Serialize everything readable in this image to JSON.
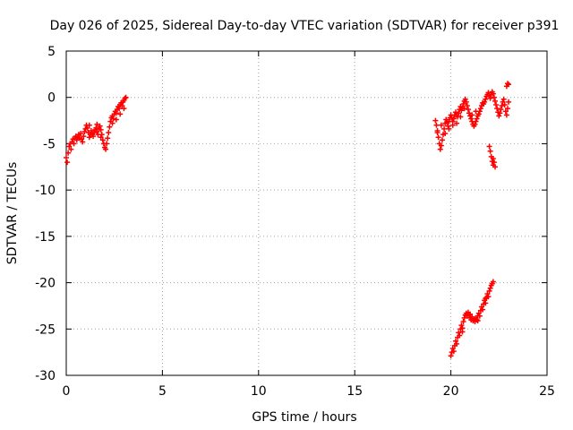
{
  "chart_data": {
    "type": "scatter",
    "title": "Day 026 of 2025, Sidereal Day-to-day VTEC variation (SDTVAR) for receiver p391",
    "xlabel": "GPS time / hours",
    "ylabel": "SDTVAR / TECUs",
    "xlim": [
      0,
      25
    ],
    "ylim": [
      -30,
      5
    ],
    "x_ticks": [
      0,
      5,
      10,
      15,
      20,
      25
    ],
    "y_ticks": [
      5,
      0,
      -5,
      -10,
      -15,
      -20,
      -25,
      -30
    ],
    "grid": true,
    "marker": "plus",
    "series_color": "#ff0000",
    "series": [
      {
        "points": [
          [
            0.0,
            -6.5
          ],
          [
            0.05,
            -7.0
          ],
          [
            0.1,
            -6.0
          ],
          [
            0.15,
            -5.3
          ],
          [
            0.2,
            -5.0
          ],
          [
            0.25,
            -5.6
          ],
          [
            0.3,
            -4.8
          ],
          [
            0.35,
            -4.5
          ],
          [
            0.4,
            -5.0
          ],
          [
            0.45,
            -4.4
          ],
          [
            0.5,
            -4.2
          ],
          [
            0.55,
            -4.6
          ],
          [
            0.6,
            -4.3
          ],
          [
            0.65,
            -4.0
          ],
          [
            0.7,
            -4.4
          ],
          [
            0.75,
            -3.9
          ],
          [
            0.8,
            -4.5
          ],
          [
            0.85,
            -4.8
          ],
          [
            0.9,
            -4.2
          ],
          [
            0.95,
            -3.7
          ],
          [
            1.0,
            -3.4
          ],
          [
            1.05,
            -3.0
          ],
          [
            1.1,
            -3.3
          ],
          [
            1.15,
            -3.8
          ],
          [
            1.2,
            -4.3
          ],
          [
            1.25,
            -4.0
          ],
          [
            1.3,
            -3.6
          ],
          [
            1.35,
            -3.9
          ],
          [
            1.4,
            -4.2
          ],
          [
            1.45,
            -3.8
          ],
          [
            1.5,
            -3.5
          ],
          [
            1.55,
            -3.3
          ],
          [
            1.6,
            -3.7
          ],
          [
            1.65,
            -4.0
          ],
          [
            1.7,
            -3.4
          ],
          [
            1.75,
            -3.1
          ],
          [
            1.8,
            -3.5
          ],
          [
            1.85,
            -4.0
          ],
          [
            1.9,
            -4.6
          ],
          [
            1.95,
            -5.0
          ],
          [
            2.0,
            -5.4
          ],
          [
            2.05,
            -5.6
          ],
          [
            2.1,
            -5.0
          ],
          [
            2.15,
            -4.4
          ],
          [
            2.2,
            -3.8
          ],
          [
            2.25,
            -3.2
          ],
          [
            2.3,
            -2.6
          ],
          [
            2.35,
            -2.2
          ],
          [
            2.4,
            -2.0
          ],
          [
            2.45,
            -2.3
          ],
          [
            2.5,
            -1.8
          ],
          [
            2.55,
            -1.5
          ],
          [
            2.6,
            -1.7
          ],
          [
            2.65,
            -1.3
          ],
          [
            2.7,
            -1.0
          ],
          [
            2.75,
            -1.2
          ],
          [
            2.8,
            -0.8
          ],
          [
            2.85,
            -0.6
          ],
          [
            2.9,
            -0.9
          ],
          [
            2.95,
            -0.5
          ],
          [
            3.0,
            -0.3
          ],
          [
            3.05,
            -0.1
          ],
          [
            3.1,
            0.0
          ],
          [
            2.4,
            -2.8
          ],
          [
            2.6,
            -2.4
          ],
          [
            2.8,
            -1.8
          ],
          [
            3.0,
            -1.2
          ],
          [
            1.2,
            -3.0
          ],
          [
            1.6,
            -2.9
          ],
          [
            1.8,
            -4.3
          ],
          [
            19.2,
            -2.5
          ],
          [
            19.25,
            -3.0
          ],
          [
            19.3,
            -3.6
          ],
          [
            19.35,
            -4.3
          ],
          [
            19.4,
            -5.0
          ],
          [
            19.45,
            -5.6
          ],
          [
            19.5,
            -5.2
          ],
          [
            19.55,
            -4.6
          ],
          [
            19.6,
            -4.0
          ],
          [
            19.65,
            -3.4
          ],
          [
            19.7,
            -2.8
          ],
          [
            19.75,
            -2.4
          ],
          [
            19.8,
            -2.7
          ],
          [
            19.85,
            -3.1
          ],
          [
            19.9,
            -2.6
          ],
          [
            19.95,
            -2.2
          ],
          [
            20.0,
            -1.9
          ],
          [
            20.05,
            -2.2
          ],
          [
            20.1,
            -2.6
          ],
          [
            20.15,
            -2.3
          ],
          [
            20.2,
            -1.9
          ],
          [
            20.25,
            -1.6
          ],
          [
            20.3,
            -1.9
          ],
          [
            20.35,
            -2.1
          ],
          [
            20.4,
            -1.7
          ],
          [
            20.45,
            -1.3
          ],
          [
            20.5,
            -1.0
          ],
          [
            20.55,
            -1.4
          ],
          [
            20.6,
            -1.1
          ],
          [
            20.65,
            -0.7
          ],
          [
            20.7,
            -0.4
          ],
          [
            20.75,
            -0.2
          ],
          [
            20.8,
            -0.5
          ],
          [
            20.85,
            -0.9
          ],
          [
            20.9,
            -1.3
          ],
          [
            20.95,
            -1.7
          ],
          [
            21.0,
            -2.0
          ],
          [
            21.05,
            -2.3
          ],
          [
            21.1,
            -2.6
          ],
          [
            21.15,
            -2.9
          ],
          [
            21.2,
            -3.1
          ],
          [
            21.25,
            -2.9
          ],
          [
            21.3,
            -2.6
          ],
          [
            21.35,
            -2.3
          ],
          [
            21.4,
            -2.0
          ],
          [
            21.45,
            -1.8
          ],
          [
            21.5,
            -1.5
          ],
          [
            21.55,
            -1.2
          ],
          [
            21.6,
            -0.9
          ],
          [
            21.65,
            -0.6
          ],
          [
            21.7,
            -0.7
          ],
          [
            21.75,
            -0.5
          ],
          [
            21.8,
            -0.2
          ],
          [
            21.85,
            0.1
          ],
          [
            21.9,
            0.3
          ],
          [
            21.95,
            0.5
          ],
          [
            22.0,
            0.2
          ],
          [
            22.05,
            -0.1
          ],
          [
            22.1,
            0.3
          ],
          [
            22.15,
            0.6
          ],
          [
            22.2,
            0.4
          ],
          [
            22.25,
            0.0
          ],
          [
            22.3,
            -0.4
          ],
          [
            22.35,
            -0.8
          ],
          [
            22.4,
            -1.2
          ],
          [
            22.45,
            -1.6
          ],
          [
            22.5,
            -2.0
          ],
          [
            22.55,
            -1.7
          ],
          [
            22.6,
            -1.3
          ],
          [
            22.65,
            -0.9
          ],
          [
            22.7,
            -0.5
          ],
          [
            22.75,
            -0.2
          ],
          [
            22.8,
            -0.8
          ],
          [
            22.85,
            -1.5
          ],
          [
            22.9,
            -1.9
          ],
          [
            22.95,
            -1.2
          ],
          [
            23.0,
            -0.5
          ],
          [
            22.9,
            1.2
          ],
          [
            22.95,
            1.5
          ],
          [
            23.0,
            1.4
          ],
          [
            19.3,
            -3.8
          ],
          [
            19.5,
            -3.0
          ],
          [
            19.7,
            -3.9
          ],
          [
            19.9,
            -3.4
          ],
          [
            20.1,
            -3.0
          ],
          [
            20.3,
            -2.8
          ],
          [
            20.5,
            -2.1
          ],
          [
            20.7,
            -1.2
          ],
          [
            21.1,
            -1.9
          ],
          [
            21.3,
            -1.5
          ],
          [
            22.0,
            -5.3
          ],
          [
            22.05,
            -5.8
          ],
          [
            22.1,
            -6.4
          ],
          [
            22.15,
            -6.9
          ],
          [
            22.2,
            -7.3
          ],
          [
            22.25,
            -7.0
          ],
          [
            22.3,
            -7.5
          ],
          [
            22.2,
            -6.6
          ],
          [
            20.0,
            -27.9
          ],
          [
            20.05,
            -27.5
          ],
          [
            20.1,
            -27.1
          ],
          [
            20.15,
            -27.4
          ],
          [
            20.2,
            -26.8
          ],
          [
            20.25,
            -26.3
          ],
          [
            20.3,
            -26.6
          ],
          [
            20.35,
            -25.9
          ],
          [
            20.4,
            -25.4
          ],
          [
            20.45,
            -25.7
          ],
          [
            20.5,
            -25.0
          ],
          [
            20.55,
            -24.6
          ],
          [
            20.6,
            -24.9
          ],
          [
            20.65,
            -24.2
          ],
          [
            20.7,
            -23.8
          ],
          [
            20.75,
            -23.5
          ],
          [
            20.8,
            -23.3
          ],
          [
            20.85,
            -23.6
          ],
          [
            20.9,
            -23.2
          ],
          [
            20.95,
            -23.5
          ],
          [
            21.0,
            -23.8
          ],
          [
            21.05,
            -24.0
          ],
          [
            21.1,
            -23.7
          ],
          [
            21.15,
            -24.1
          ],
          [
            21.2,
            -23.9
          ],
          [
            21.25,
            -24.2
          ],
          [
            21.3,
            -23.8
          ],
          [
            21.35,
            -24.0
          ],
          [
            21.4,
            -23.6
          ],
          [
            21.45,
            -23.3
          ],
          [
            21.5,
            -23.6
          ],
          [
            21.55,
            -23.0
          ],
          [
            21.6,
            -22.6
          ],
          [
            21.65,
            -22.9
          ],
          [
            21.7,
            -22.3
          ],
          [
            21.75,
            -21.9
          ],
          [
            21.8,
            -22.2
          ],
          [
            21.85,
            -21.6
          ],
          [
            21.9,
            -21.2
          ],
          [
            21.95,
            -21.5
          ],
          [
            22.0,
            -20.9
          ],
          [
            22.05,
            -20.6
          ],
          [
            22.1,
            -20.3
          ],
          [
            22.15,
            -20.1
          ],
          [
            22.2,
            -19.9
          ],
          [
            20.6,
            -25.3
          ],
          [
            21.0,
            -23.4
          ],
          [
            21.4,
            -24.1
          ],
          [
            21.8,
            -21.7
          ]
        ]
      }
    ]
  }
}
